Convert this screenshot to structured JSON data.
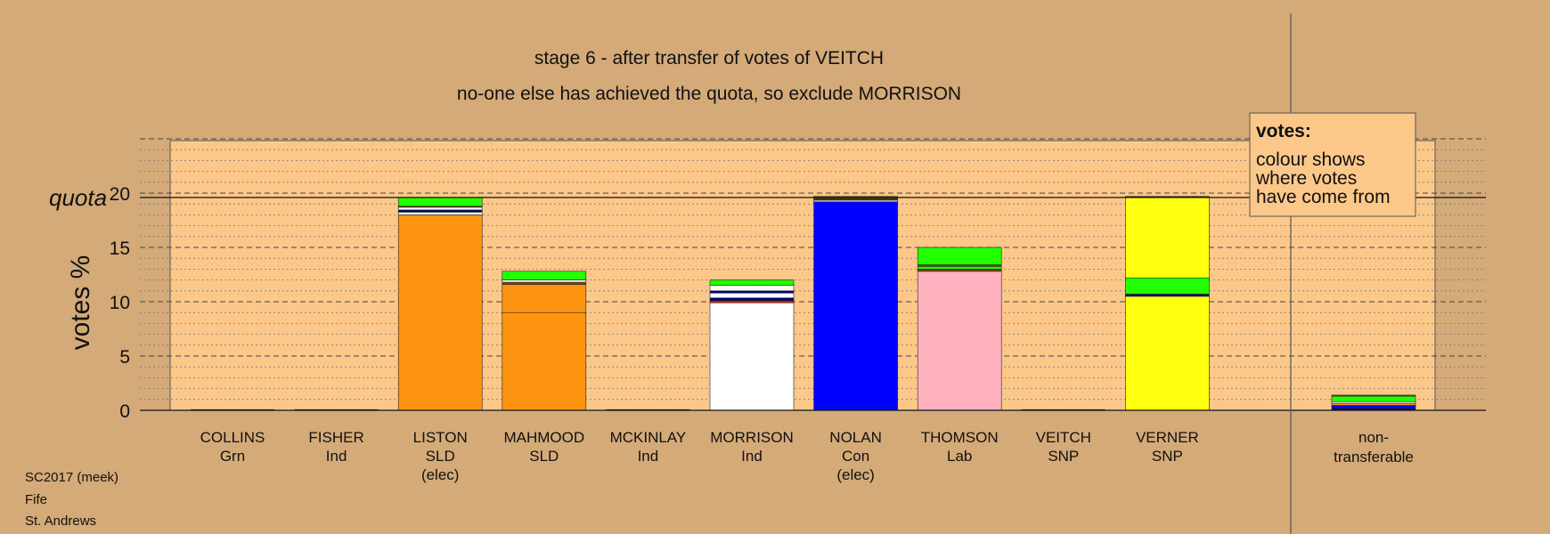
{
  "colors": {
    "background": "#d4aa78",
    "plot_fill": "#fcc88a",
    "SLD": "#ff9410",
    "Ind": "#ffffff",
    "Con": "#0000ff",
    "Lab": "#ffb1c0",
    "SNP": "#ffff10",
    "Grn": "#22ff00",
    "navy": "#000080"
  },
  "chart_data": {
    "type": "bar",
    "stacked": true,
    "title": "stage 6 - after transfer of votes of VEITCH",
    "subtitle": "no-one else has achieved the quota, so exclude MORRISON",
    "ylabel": "votes %",
    "ylim": [
      0,
      25
    ],
    "yticks": [
      0,
      5,
      10,
      15,
      20
    ],
    "quota": 19.6,
    "quota_label": "quota",
    "grid": "dashed major every 5, dotted minor every 1",
    "categories": [
      {
        "name": "COLLINS",
        "party": "Grn",
        "note": ""
      },
      {
        "name": "FISHER",
        "party": "Ind",
        "note": ""
      },
      {
        "name": "LISTON",
        "party": "SLD",
        "note": "(elec)"
      },
      {
        "name": "MAHMOOD",
        "party": "SLD",
        "note": ""
      },
      {
        "name": "MCKINLAY",
        "party": "Ind",
        "note": ""
      },
      {
        "name": "MORRISON",
        "party": "Ind",
        "note": ""
      },
      {
        "name": "NOLAN",
        "party": "Con",
        "note": "(elec)"
      },
      {
        "name": "THOMSON",
        "party": "Lab",
        "note": ""
      },
      {
        "name": "VEITCH",
        "party": "SNP",
        "note": ""
      },
      {
        "name": "VERNER",
        "party": "SNP",
        "note": ""
      }
    ],
    "bars": [
      {
        "segments": []
      },
      {
        "segments": []
      },
      {
        "segments": [
          {
            "value": 18.0,
            "color": "#ff9410"
          },
          {
            "value": 0.25,
            "color": "#ffffff"
          },
          {
            "value": 0.2,
            "color": "#000080"
          },
          {
            "value": 0.25,
            "color": "#ffffff"
          },
          {
            "value": 0.1,
            "color": "#884400"
          },
          {
            "value": 0.8,
            "color": "#22ff00"
          }
        ]
      },
      {
        "segments": [
          {
            "value": 9.0,
            "color": "#ff9410"
          },
          {
            "value": 2.6,
            "color": "#ff9410"
          },
          {
            "value": 0.2,
            "color": "#884400"
          },
          {
            "value": 0.2,
            "color": "#ffffff"
          },
          {
            "value": 0.8,
            "color": "#22ff00"
          }
        ]
      },
      {
        "segments": []
      },
      {
        "segments": [
          {
            "value": 9.9,
            "color": "#ffffff"
          },
          {
            "value": 0.2,
            "color": "#cc2200"
          },
          {
            "value": 0.25,
            "color": "#000080"
          },
          {
            "value": 0.45,
            "color": "#ffffff"
          },
          {
            "value": 0.2,
            "color": "#000080"
          },
          {
            "value": 0.5,
            "color": "#ffffff"
          },
          {
            "value": 0.5,
            "color": "#22ff00"
          }
        ]
      },
      {
        "segments": [
          {
            "value": 19.2,
            "color": "#0000ff"
          },
          {
            "value": 0.15,
            "color": "#ffffff"
          },
          {
            "value": 0.2,
            "color": "#663300"
          },
          {
            "value": 0.15,
            "color": "#22ff00"
          }
        ]
      },
      {
        "segments": [
          {
            "value": 12.8,
            "color": "#ffb1c0"
          },
          {
            "value": 0.2,
            "color": "#884400"
          },
          {
            "value": 0.25,
            "color": "#22ff00"
          },
          {
            "value": 0.15,
            "color": "#884400"
          },
          {
            "value": 1.6,
            "color": "#22ff00"
          }
        ]
      },
      {
        "segments": []
      },
      {
        "segments": [
          {
            "value": 10.5,
            "color": "#ffff10"
          },
          {
            "value": 0.2,
            "color": "#000080"
          },
          {
            "value": 1.5,
            "color": "#22ff00"
          },
          {
            "value": 7.4,
            "color": "#ffff10"
          },
          {
            "value": 0.1,
            "color": "#884400"
          }
        ]
      }
    ],
    "nontransferable": {
      "label_line1": "non-",
      "label_line2": "transferable",
      "segments": [
        {
          "value": 0.2,
          "color": "#000080"
        },
        {
          "value": 0.25,
          "color": "#0000ff"
        },
        {
          "value": 0.2,
          "color": "#ff9410"
        },
        {
          "value": 0.15,
          "color": "#ffffff"
        },
        {
          "value": 0.5,
          "color": "#22ff00"
        },
        {
          "value": 0.1,
          "color": "#884400"
        }
      ]
    }
  },
  "legend": {
    "title": "votes:",
    "lines": [
      "colour shows",
      "where votes",
      "have come from"
    ]
  },
  "footer": {
    "line1": "SC2017 (meek)",
    "line2": "Fife",
    "line3": "St. Andrews"
  }
}
